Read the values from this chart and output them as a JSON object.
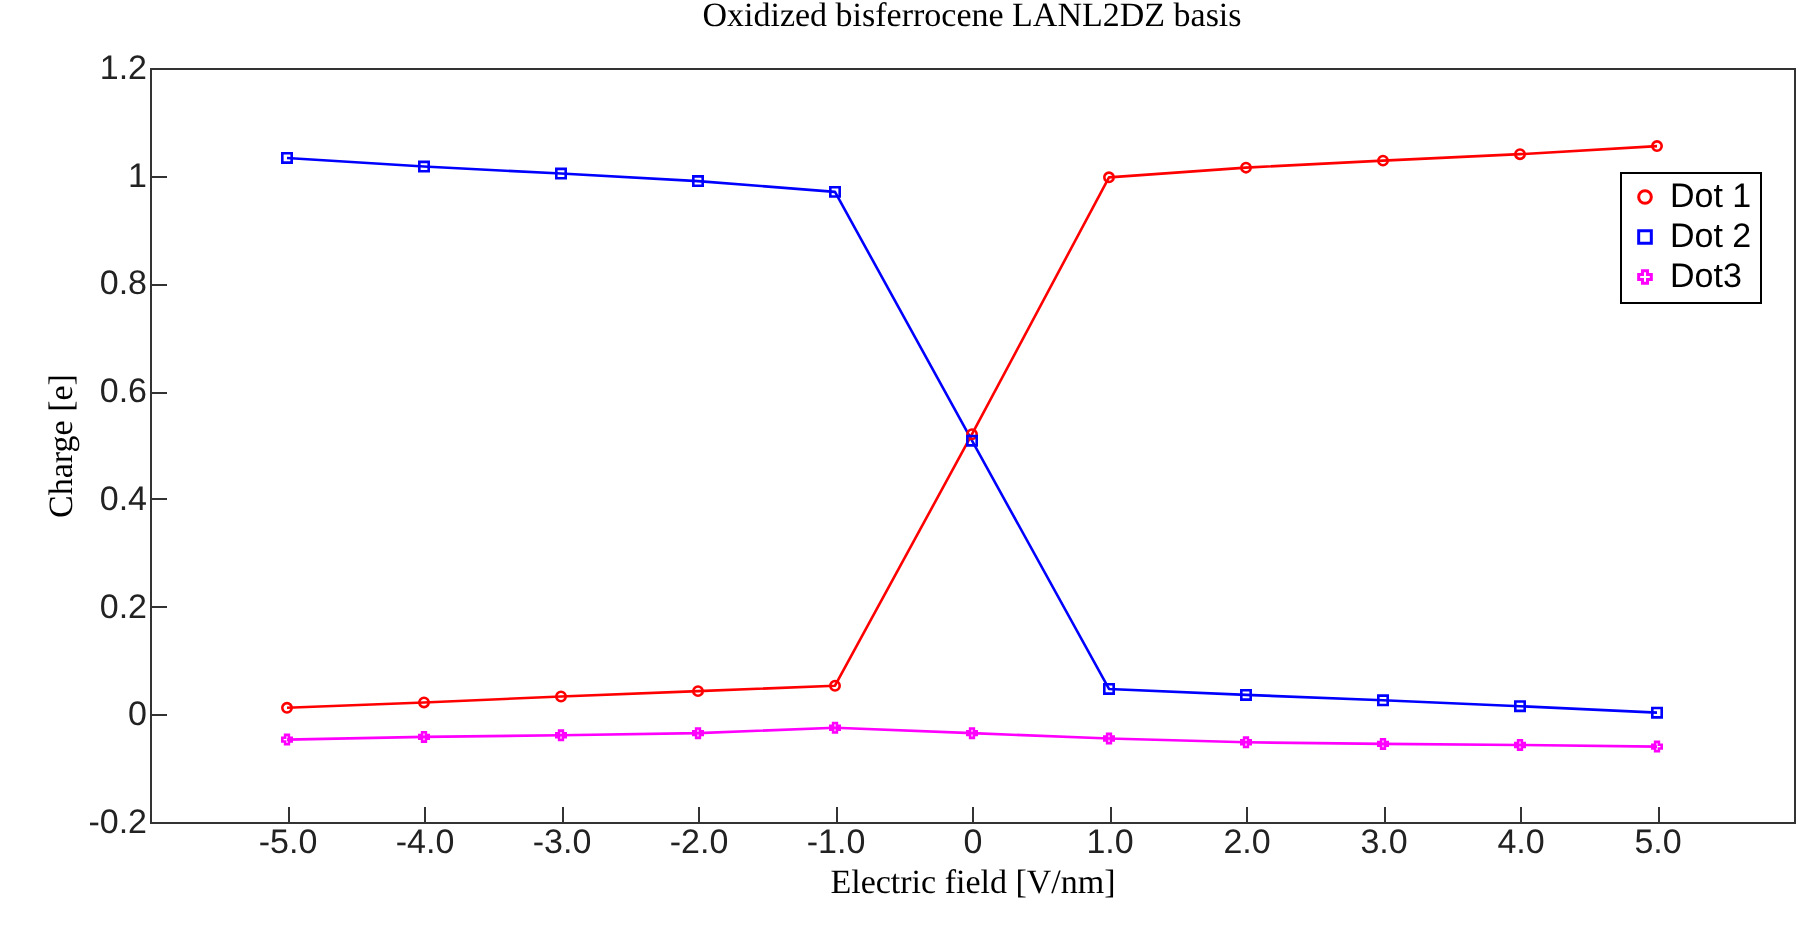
{
  "chart_data": {
    "type": "line",
    "title": "Oxidized bisferrocene LANL2DZ basis",
    "xlabel": "Electric field [V/nm]",
    "ylabel": "Charge [e]",
    "x": [
      -5,
      -4,
      -3,
      -2,
      -1,
      0,
      1,
      2,
      3,
      4,
      5
    ],
    "series": [
      {
        "name": "Dot 1",
        "color": "#ff0000",
        "marker": "circle",
        "values": [
          0.012,
          0.022,
          0.033,
          0.043,
          0.053,
          0.52,
          0.997,
          1.015,
          1.028,
          1.04,
          1.055
        ]
      },
      {
        "name": "Dot 2",
        "color": "#0000ff",
        "marker": "square",
        "values": [
          1.033,
          1.017,
          1.004,
          0.99,
          0.97,
          0.508,
          0.047,
          0.036,
          0.026,
          0.015,
          0.003
        ]
      },
      {
        "name": "Dot3",
        "color": "#ff00ff",
        "marker": "cross",
        "values": [
          -0.047,
          -0.042,
          -0.039,
          -0.035,
          -0.025,
          -0.035,
          -0.045,
          -0.052,
          -0.055,
          -0.057,
          -0.06
        ]
      }
    ],
    "xlim": [
      -6,
      6
    ],
    "xticks": [
      {
        "value": -5,
        "label": "-5.0"
      },
      {
        "value": -4,
        "label": "-4.0"
      },
      {
        "value": -3,
        "label": "-3.0"
      },
      {
        "value": -2,
        "label": "-2.0"
      },
      {
        "value": -1,
        "label": "-1.0"
      },
      0,
      {
        "value": 1,
        "label": "1.0"
      },
      {
        "value": 2,
        "label": "2.0"
      },
      {
        "value": 3,
        "label": "3.0"
      },
      {
        "value": 4,
        "label": "4.0"
      },
      {
        "value": 5,
        "label": "5.0"
      }
    ],
    "ylim": [
      -0.2,
      1.2
    ],
    "yticks": [
      -0.2,
      0,
      0.2,
      0.4,
      0.6,
      0.8,
      1,
      1.2
    ],
    "grid": false,
    "legend": "top right",
    "line_style": "solid"
  }
}
